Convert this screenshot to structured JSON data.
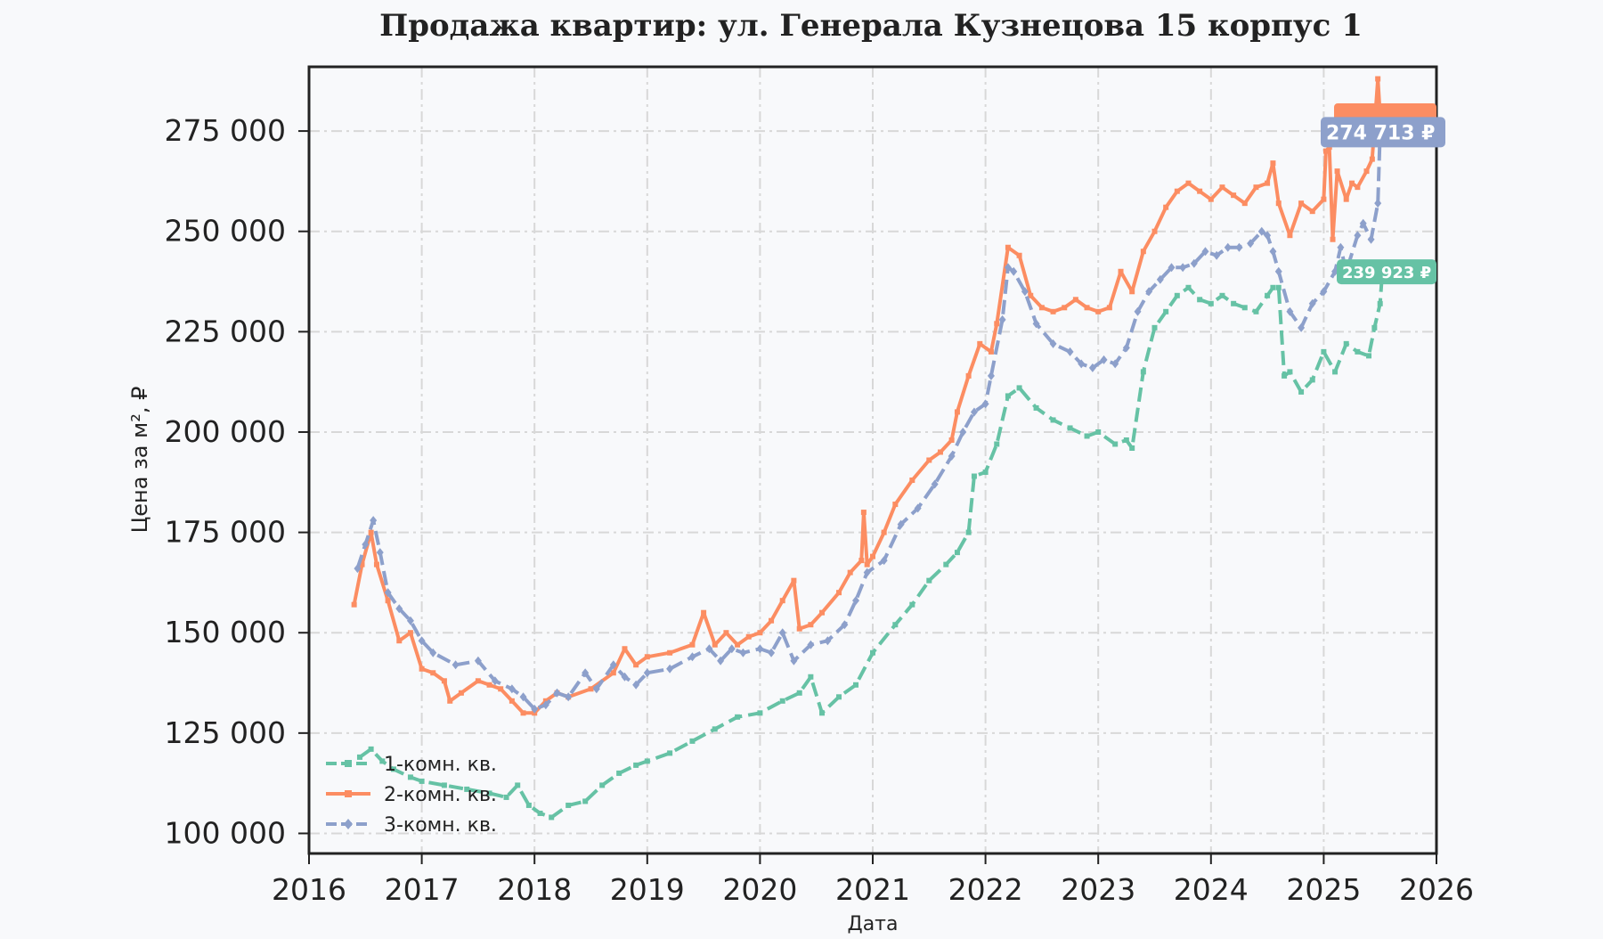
{
  "chart_data": {
    "type": "line",
    "title": "Продажа квартир: ул. Генерала Кузнецова 15 корпус 1",
    "xlabel": "Дата",
    "ylabel": "Цена за м², ₽",
    "xlim": [
      2016,
      2026
    ],
    "ylim": [
      95000,
      291000
    ],
    "x_ticks": [
      2016,
      2017,
      2018,
      2019,
      2020,
      2021,
      2022,
      2023,
      2024,
      2025,
      2026
    ],
    "x_tick_labels": [
      "2016",
      "2017",
      "2018",
      "2019",
      "2020",
      "2021",
      "2022",
      "2023",
      "2024",
      "2025",
      "2026"
    ],
    "y_ticks": [
      100000,
      125000,
      150000,
      175000,
      200000,
      225000,
      250000,
      275000
    ],
    "y_tick_labels": [
      "100 000",
      "125 000",
      "150 000",
      "175 000",
      "200 000",
      "225 000",
      "250 000",
      "275 000"
    ],
    "grid": true,
    "legend_position": "bottom-left",
    "series": [
      {
        "name": "1-комн. кв.",
        "color": "#66c2a5",
        "line_style": "dashed",
        "marker": "square",
        "end_label": "239 923 ₽",
        "end_value": 239923,
        "x": [
          2016.45,
          2016.55,
          2016.65,
          2016.75,
          2016.9,
          2017.0,
          2017.2,
          2017.4,
          2017.6,
          2017.75,
          2017.85,
          2017.95,
          2018.05,
          2018.15,
          2018.3,
          2018.45,
          2018.6,
          2018.75,
          2018.9,
          2019.0,
          2019.2,
          2019.4,
          2019.6,
          2019.8,
          2020.0,
          2020.2,
          2020.35,
          2020.45,
          2020.55,
          2020.7,
          2020.85,
          2021.0,
          2021.2,
          2021.35,
          2021.5,
          2021.65,
          2021.75,
          2021.85,
          2021.9,
          2022.0,
          2022.1,
          2022.2,
          2022.3,
          2022.45,
          2022.6,
          2022.75,
          2022.9,
          2023.0,
          2023.15,
          2023.25,
          2023.3,
          2023.4,
          2023.5,
          2023.6,
          2023.7,
          2023.8,
          2023.9,
          2024.0,
          2024.1,
          2024.2,
          2024.3,
          2024.4,
          2024.5,
          2024.55,
          2024.6,
          2024.65,
          2024.7,
          2024.8,
          2024.9,
          2025.0,
          2025.1,
          2025.2,
          2025.3,
          2025.4,
          2025.45,
          2025.5,
          2025.52
        ],
        "y": [
          119000,
          121000,
          118000,
          116000,
          114000,
          113000,
          112000,
          111000,
          110000,
          109000,
          112000,
          107000,
          105000,
          104000,
          107000,
          108000,
          112000,
          115000,
          117000,
          118000,
          120000,
          123000,
          126000,
          129000,
          130000,
          133000,
          135000,
          139000,
          130000,
          134000,
          137000,
          145000,
          152000,
          157000,
          163000,
          167000,
          170000,
          175000,
          189000,
          190000,
          197000,
          209000,
          211000,
          206000,
          203000,
          201000,
          199000,
          200000,
          197000,
          198000,
          196000,
          215000,
          226000,
          230000,
          234000,
          236000,
          233000,
          232000,
          234000,
          232000,
          231000,
          230000,
          234000,
          236000,
          236000,
          214000,
          215000,
          210000,
          213000,
          220000,
          215000,
          222000,
          220000,
          219000,
          226000,
          232000,
          239923
        ]
      },
      {
        "name": "2-комн. кв.",
        "color": "#fc8d62",
        "line_style": "solid",
        "marker": "square",
        "end_label": "",
        "end_value": 279000,
        "x": [
          2016.4,
          2016.47,
          2016.55,
          2016.6,
          2016.7,
          2016.8,
          2016.9,
          2017.0,
          2017.1,
          2017.2,
          2017.25,
          2017.35,
          2017.5,
          2017.6,
          2017.7,
          2017.8,
          2017.9,
          2018.0,
          2018.1,
          2018.2,
          2018.3,
          2018.5,
          2018.7,
          2018.8,
          2018.9,
          2019.0,
          2019.2,
          2019.4,
          2019.5,
          2019.6,
          2019.7,
          2019.8,
          2019.9,
          2020.0,
          2020.1,
          2020.2,
          2020.3,
          2020.35,
          2020.45,
          2020.55,
          2020.7,
          2020.8,
          2020.9,
          2020.92,
          2020.95,
          2021.0,
          2021.1,
          2021.2,
          2021.35,
          2021.5,
          2021.6,
          2021.7,
          2021.75,
          2021.85,
          2021.95,
          2022.05,
          2022.1,
          2022.2,
          2022.3,
          2022.4,
          2022.5,
          2022.6,
          2022.7,
          2022.8,
          2022.9,
          2023.0,
          2023.1,
          2023.2,
          2023.3,
          2023.4,
          2023.5,
          2023.6,
          2023.7,
          2023.8,
          2023.9,
          2024.0,
          2024.1,
          2024.2,
          2024.3,
          2024.4,
          2024.5,
          2024.55,
          2024.6,
          2024.7,
          2024.8,
          2024.9,
          2025.0,
          2025.02,
          2025.05,
          2025.08,
          2025.12,
          2025.2,
          2025.25,
          2025.3,
          2025.38,
          2025.43,
          2025.48,
          2025.5
        ],
        "y": [
          157000,
          167000,
          175000,
          167000,
          158000,
          148000,
          150000,
          141000,
          140000,
          138000,
          133000,
          135000,
          138000,
          137000,
          136000,
          133000,
          130000,
          130000,
          133000,
          135000,
          134000,
          136000,
          140000,
          146000,
          142000,
          144000,
          145000,
          147000,
          155000,
          147000,
          150000,
          147000,
          149000,
          150000,
          153000,
          158000,
          163000,
          151000,
          152000,
          155000,
          160000,
          165000,
          168000,
          180000,
          167000,
          169000,
          175000,
          182000,
          188000,
          193000,
          195000,
          198000,
          205000,
          214000,
          222000,
          220000,
          227000,
          246000,
          244000,
          234000,
          231000,
          230000,
          231000,
          233000,
          231000,
          230000,
          231000,
          240000,
          235000,
          245000,
          250000,
          256000,
          260000,
          262000,
          260000,
          258000,
          261000,
          259000,
          257000,
          261000,
          262000,
          267000,
          257000,
          249000,
          257000,
          255000,
          258000,
          270000,
          271000,
          248000,
          265000,
          258000,
          262000,
          261000,
          265000,
          268000,
          288000,
          279000
        ]
      },
      {
        "name": "3-комн. кв.",
        "color": "#8da0cb",
        "line_style": "dashed",
        "marker": "diamond",
        "end_label": "274 713 ₽",
        "end_value": 274713,
        "x": [
          2016.43,
          2016.5,
          2016.57,
          2016.63,
          2016.7,
          2016.8,
          2016.9,
          2017.0,
          2017.1,
          2017.3,
          2017.5,
          2017.65,
          2017.8,
          2017.9,
          2018.0,
          2018.1,
          2018.2,
          2018.3,
          2018.45,
          2018.55,
          2018.7,
          2018.8,
          2018.9,
          2019.0,
          2019.2,
          2019.4,
          2019.55,
          2019.65,
          2019.75,
          2019.85,
          2020.0,
          2020.1,
          2020.2,
          2020.3,
          2020.45,
          2020.6,
          2020.75,
          2020.85,
          2020.95,
          2021.1,
          2021.25,
          2021.4,
          2021.55,
          2021.7,
          2021.8,
          2021.9,
          2022.0,
          2022.05,
          2022.15,
          2022.2,
          2022.25,
          2022.35,
          2022.45,
          2022.6,
          2022.75,
          2022.85,
          2022.95,
          2023.05,
          2023.15,
          2023.25,
          2023.35,
          2023.45,
          2023.55,
          2023.65,
          2023.75,
          2023.85,
          2023.95,
          2024.05,
          2024.15,
          2024.25,
          2024.35,
          2024.45,
          2024.5,
          2024.55,
          2024.6,
          2024.7,
          2024.8,
          2024.9,
          2025.0,
          2025.1,
          2025.15,
          2025.2,
          2025.3,
          2025.35,
          2025.42,
          2025.48,
          2025.5
        ],
        "y": [
          166000,
          172000,
          178000,
          170000,
          160000,
          156000,
          153000,
          148000,
          145000,
          142000,
          143000,
          138000,
          136000,
          134000,
          131000,
          132000,
          135000,
          134000,
          140000,
          136000,
          142000,
          139000,
          137000,
          140000,
          141000,
          144000,
          146000,
          143000,
          146000,
          145000,
          146000,
          145000,
          150000,
          143000,
          147000,
          148000,
          152000,
          158000,
          165000,
          168000,
          177000,
          181000,
          187000,
          194000,
          200000,
          205000,
          207000,
          214000,
          228000,
          241000,
          240000,
          235000,
          227000,
          222000,
          220000,
          217000,
          216000,
          218000,
          217000,
          221000,
          230000,
          235000,
          238000,
          241000,
          241000,
          242000,
          245000,
          244000,
          246000,
          246000,
          247000,
          250000,
          249000,
          245000,
          240000,
          230000,
          226000,
          232000,
          235000,
          240000,
          246000,
          240000,
          249000,
          252000,
          248000,
          257000,
          274713
        ]
      }
    ]
  }
}
